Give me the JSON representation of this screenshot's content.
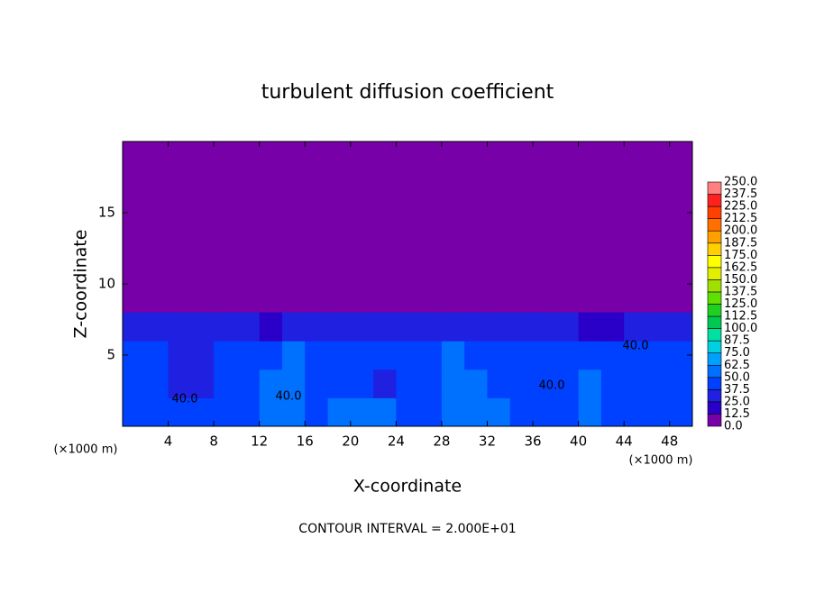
{
  "chart_data": {
    "type": "contour",
    "title": "turbulent diffusion coefficient",
    "x_label": "X-coordinate",
    "y_label": "Z-coordinate",
    "x_unit": "(×1000 m)",
    "x_unit_right": "(×1000 m)",
    "footer": "CONTOUR INTERVAL = 2.000E+01",
    "annotations": [
      "40.0",
      "40.0",
      "40.0",
      "40.0"
    ],
    "xlim": [
      0,
      50
    ],
    "ylim": [
      0,
      20
    ],
    "xticks": [
      4,
      8,
      12,
      16,
      20,
      24,
      28,
      32,
      36,
      40,
      44,
      48
    ],
    "yticks": [
      5,
      10,
      15
    ],
    "x": [
      1,
      3,
      5,
      7,
      9,
      11,
      13,
      15,
      17,
      19,
      21,
      23,
      25,
      27,
      29,
      31,
      33,
      35,
      37,
      39,
      41,
      43,
      45,
      47,
      49
    ],
    "z": [
      1,
      3,
      5,
      7
    ],
    "values": [
      [
        45,
        40,
        42,
        38,
        40,
        45,
        55,
        50,
        48,
        60,
        55,
        50,
        45,
        42,
        55,
        62,
        50,
        45,
        40,
        42,
        50,
        45,
        40,
        38,
        45
      ],
      [
        40,
        38,
        35,
        36,
        38,
        42,
        50,
        55,
        45,
        42,
        38,
        36,
        40,
        45,
        60,
        55,
        45,
        40,
        38,
        45,
        50,
        42,
        38,
        40,
        42
      ],
      [
        42,
        40,
        36,
        35,
        38,
        45,
        48,
        52,
        45,
        40,
        38,
        40,
        42,
        48,
        55,
        45,
        40,
        45,
        38,
        40,
        45,
        42,
        38,
        40,
        45
      ],
      [
        30,
        35,
        25,
        28,
        30,
        35,
        20,
        25,
        30,
        35,
        28,
        30,
        32,
        35,
        30,
        28,
        30,
        30,
        35,
        25,
        20,
        15,
        30,
        35,
        32
      ]
    ],
    "colorbar_ticks": [
      {
        "value": 0,
        "label": "0.0"
      },
      {
        "value": 12.5,
        "label": "12.5"
      },
      {
        "value": 25,
        "label": "25.0"
      },
      {
        "value": 37.5,
        "label": "37.5"
      },
      {
        "value": 50,
        "label": "50.0"
      },
      {
        "value": 62.5,
        "label": "62.5"
      },
      {
        "value": 75,
        "label": "75.0"
      },
      {
        "value": 87.5,
        "label": "87.5"
      },
      {
        "value": 100,
        "label": "100.0"
      },
      {
        "value": 112.5,
        "label": "112.5"
      },
      {
        "value": 125,
        "label": "125.0"
      },
      {
        "value": 137.5,
        "label": "137.5"
      },
      {
        "value": 150,
        "label": "150.0"
      },
      {
        "value": 162.5,
        "label": "162.5"
      },
      {
        "value": 175,
        "label": "175.0"
      },
      {
        "value": 187.5,
        "label": "187.5"
      },
      {
        "value": 200,
        "label": "200.0"
      },
      {
        "value": 212.5,
        "label": "212.5"
      },
      {
        "value": 225,
        "label": "225.0"
      },
      {
        "value": 237.5,
        "label": "237.5"
      },
      {
        "value": 250,
        "label": "250.0"
      }
    ],
    "colors": [
      "#7800a8",
      "#2a00c8",
      "#2020e0",
      "#0040ff",
      "#0070ff",
      "#00a0ff",
      "#00d0e0",
      "#00e0a0",
      "#00c850",
      "#20d020",
      "#60e000",
      "#a0e000",
      "#e0f000",
      "#ffff00",
      "#ffd000",
      "#ffa000",
      "#ff7000",
      "#ff4000",
      "#ff2020",
      "#ff8080"
    ]
  }
}
